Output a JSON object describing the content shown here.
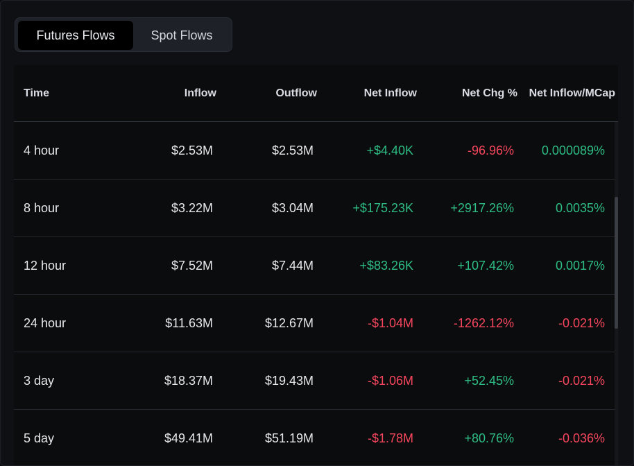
{
  "tabs": [
    {
      "label": "Futures Flows",
      "active": true
    },
    {
      "label": "Spot Flows",
      "active": false
    }
  ],
  "table": {
    "headers": {
      "time": "Time",
      "inflow": "Inflow",
      "outflow": "Outflow",
      "net_inflow": "Net Inflow",
      "net_chg": "Net Chg %",
      "net_mcap": "Net Inflow/MCap"
    },
    "rows": [
      {
        "time": "4 hour",
        "inflow": "$2.53M",
        "outflow": "$2.53M",
        "net_inflow": "+$4.40K",
        "net_chg": "-96.96%",
        "net_mcap": "0.000089%"
      },
      {
        "time": "8 hour",
        "inflow": "$3.22M",
        "outflow": "$3.04M",
        "net_inflow": "+$175.23K",
        "net_chg": "+2917.26%",
        "net_mcap": "0.0035%"
      },
      {
        "time": "12 hour",
        "inflow": "$7.52M",
        "outflow": "$7.44M",
        "net_inflow": "+$83.26K",
        "net_chg": "+107.42%",
        "net_mcap": "0.0017%"
      },
      {
        "time": "24 hour",
        "inflow": "$11.63M",
        "outflow": "$12.67M",
        "net_inflow": "-$1.04M",
        "net_chg": "-1262.12%",
        "net_mcap": "-0.021%"
      },
      {
        "time": "3 day",
        "inflow": "$18.37M",
        "outflow": "$19.43M",
        "net_inflow": "-$1.06M",
        "net_chg": "+52.45%",
        "net_mcap": "-0.021%"
      },
      {
        "time": "5 day",
        "inflow": "$49.41M",
        "outflow": "$51.19M",
        "net_inflow": "-$1.78M",
        "net_chg": "+80.76%",
        "net_mcap": "-0.036%"
      }
    ]
  },
  "colors": {
    "positive": "#2ebd85",
    "negative": "#f6465d",
    "background": "#0e1014"
  }
}
